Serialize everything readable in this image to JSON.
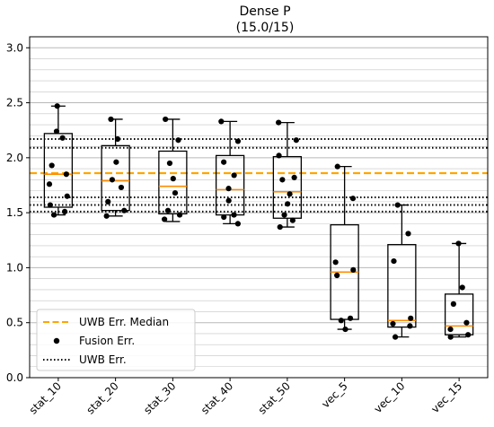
{
  "chart_data": {
    "type": "box",
    "title": "Dense P",
    "subtitle": "(15.0/15)",
    "xlabel": "",
    "ylabel": "",
    "ylim": [
      0.0,
      3.1
    ],
    "yticks": [
      "0.0",
      "0.5",
      "1.0",
      "1.5",
      "2.0",
      "2.5",
      "3.0"
    ],
    "grid": "horizontal minor",
    "legend_position": "lower-left",
    "colors": {
      "median": "#ff8c00",
      "points": "#000000",
      "uwb_median": "#ffa500",
      "uwb_err": "#000000",
      "grid": "#b0b0b0"
    },
    "categories": [
      "stat_10",
      "stat_20",
      "stat_30",
      "stat_40",
      "stat_50",
      "vec_5",
      "vec_10",
      "vec_15"
    ],
    "boxes": [
      {
        "whisker_low": 1.48,
        "q1": 1.55,
        "median": 1.85,
        "q3": 2.22,
        "whisker_high": 2.47
      },
      {
        "whisker_low": 1.47,
        "q1": 1.52,
        "median": 1.79,
        "q3": 2.11,
        "whisker_high": 2.35
      },
      {
        "whisker_low": 1.42,
        "q1": 1.49,
        "median": 1.74,
        "q3": 2.06,
        "whisker_high": 2.35
      },
      {
        "whisker_low": 1.4,
        "q1": 1.48,
        "median": 1.71,
        "q3": 2.02,
        "whisker_high": 2.33
      },
      {
        "whisker_low": 1.37,
        "q1": 1.45,
        "median": 1.69,
        "q3": 2.01,
        "whisker_high": 2.32
      },
      {
        "whisker_low": 0.44,
        "q1": 0.53,
        "median": 0.96,
        "q3": 1.39,
        "whisker_high": 1.92
      },
      {
        "whisker_low": 0.37,
        "q1": 0.46,
        "median": 0.52,
        "q3": 1.21,
        "whisker_high": 1.57
      },
      {
        "whisker_low": 0.37,
        "q1": 0.39,
        "median": 0.47,
        "q3": 0.76,
        "whisker_high": 1.22
      }
    ],
    "series": [
      {
        "name": "UWB Err. Median",
        "style": "dashed",
        "values": [
          1.86
        ]
      },
      {
        "name": "Fusion Err.",
        "style": "points",
        "values": [
          [
            2.47,
            2.24,
            2.18,
            1.93,
            1.85,
            1.76,
            1.65,
            1.57,
            1.51,
            1.48
          ],
          [
            2.35,
            2.17,
            1.96,
            1.8,
            1.73,
            1.6,
            1.52,
            1.47
          ],
          [
            2.35,
            2.16,
            1.95,
            1.81,
            1.68,
            1.52,
            1.48,
            1.44
          ],
          [
            2.33,
            2.15,
            1.96,
            1.84,
            1.72,
            1.61,
            1.48,
            1.46,
            1.4
          ],
          [
            2.32,
            2.16,
            2.02,
            1.82,
            1.8,
            1.67,
            1.58,
            1.48,
            1.43,
            1.37
          ],
          [
            1.92,
            1.63,
            1.05,
            0.98,
            0.93,
            0.54,
            0.52,
            0.44
          ],
          [
            1.57,
            1.31,
            1.06,
            0.54,
            0.49,
            0.47,
            0.37
          ],
          [
            1.22,
            0.82,
            0.67,
            0.5,
            0.44,
            0.39,
            0.37
          ]
        ]
      },
      {
        "name": "UWB Err.",
        "style": "dotted",
        "values": [
          2.17,
          2.09,
          1.64,
          1.57,
          1.51
        ]
      }
    ]
  }
}
